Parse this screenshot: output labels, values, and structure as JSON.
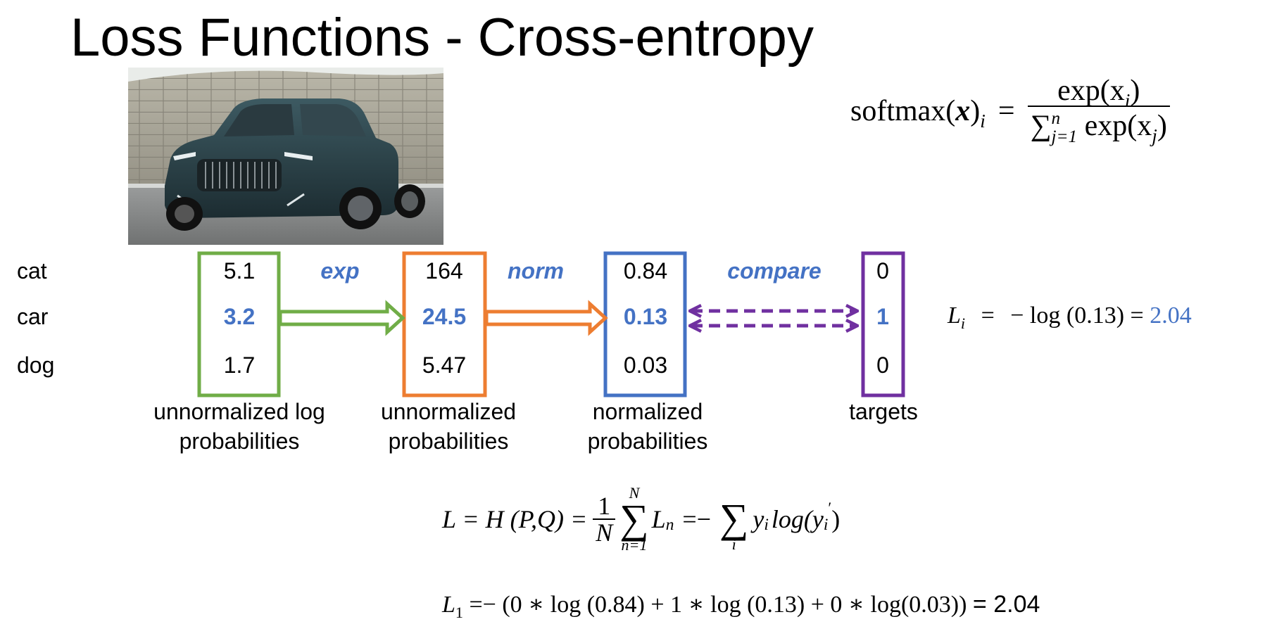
{
  "title": "Loss Functions - Cross-entropy",
  "image": {
    "subject": "car-photo"
  },
  "rows": [
    "cat",
    "car",
    "dog"
  ],
  "logits": [
    "5.1",
    "3.2",
    "1.7"
  ],
  "exps": [
    "164",
    "24.5",
    "5.47"
  ],
  "probs": [
    "0.84",
    "0.13",
    "0.03"
  ],
  "targets": [
    "0",
    "1",
    "0"
  ],
  "ops": {
    "exp": "exp",
    "norm": "norm",
    "compare": "compare"
  },
  "captions": {
    "logits": [
      "unnormalized log",
      "probabilities"
    ],
    "exps": [
      "unnormalized",
      "probabilities"
    ],
    "probs": [
      "normalized",
      "probabilities"
    ],
    "targets": "targets"
  },
  "softmax": {
    "lhs": "softmax(",
    "x": "x",
    "close": ")",
    "i": "i",
    "eq": "=",
    "num": "exp(x",
    "num_sub": "i",
    "num_close": ")",
    "den_sum": "∑",
    "den_top": "n",
    "den_bottom": "j=1",
    "den_text": " exp(x",
    "den_sub": "j",
    "den_close": ")"
  },
  "li_formula": {
    "L": "L",
    "sub": "i",
    "eq": "=",
    "expr": "− log (0.13) =",
    "value": "2.04"
  },
  "h_formula": {
    "lhs": "L = H (P,Q) =",
    "one": "1",
    "N": "N",
    "sum_top": "N",
    "sum_bottom": "n=1",
    "sigma": "∑",
    "Ln": "L",
    "n": "n",
    "eq": "=−",
    "sum2_bottom": "i",
    "y": "y",
    "y_sub": "i",
    "log": "log(y",
    "prime_sub": "i",
    "prime": "′",
    "close": ")"
  },
  "l1_formula": {
    "L": "L",
    "sub": "1",
    "expr": "=− (0 ∗ log (0.84) + 1 ∗ log (0.13) + 0 ∗ log(0.03))",
    "result": "= 2.04"
  },
  "colors": {
    "green": "#70ad47",
    "orange": "#ed7d31",
    "blue": "#4472c4",
    "purple": "#7030a0"
  }
}
